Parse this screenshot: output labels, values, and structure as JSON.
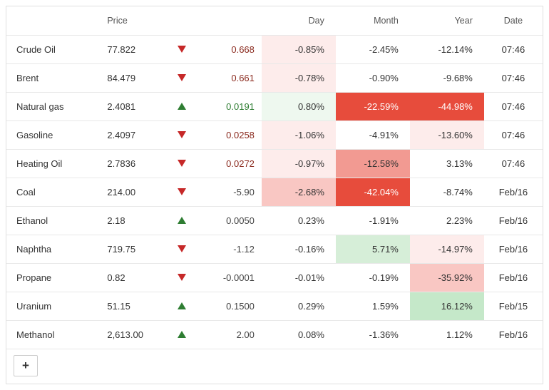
{
  "columns": {
    "name": "",
    "price": "Price",
    "arrow": "",
    "change": "",
    "day": "Day",
    "month": "Month",
    "year": "Year",
    "date": "Date"
  },
  "heat": {
    "neg1": "#fdeceb",
    "neg2": "#f9c7c3",
    "neg3": "#f29a92",
    "neg4": "#e74c3c",
    "neg4_text": "#ffffff",
    "pos1": "#eef8ef",
    "pos2": "#d6eed8",
    "pos3": "#c5e8c9"
  },
  "rows": [
    {
      "name": "Crude Oil",
      "price": "77.822",
      "dir": "down",
      "change": "0.668",
      "change_color": "down",
      "day": {
        "v": "-0.85%",
        "bg": "neg1"
      },
      "month": {
        "v": "-2.45%",
        "bg": null
      },
      "year": {
        "v": "-12.14%",
        "bg": null
      },
      "date": "07:46"
    },
    {
      "name": "Brent",
      "price": "84.479",
      "dir": "down",
      "change": "0.661",
      "change_color": "down",
      "day": {
        "v": "-0.78%",
        "bg": "neg1"
      },
      "month": {
        "v": "-0.90%",
        "bg": null
      },
      "year": {
        "v": "-9.68%",
        "bg": null
      },
      "date": "07:46"
    },
    {
      "name": "Natural gas",
      "price": "2.4081",
      "dir": "up",
      "change": "0.0191",
      "change_color": "up",
      "day": {
        "v": "0.80%",
        "bg": "pos1"
      },
      "month": {
        "v": "-22.59%",
        "bg": "neg4"
      },
      "year": {
        "v": "-44.98%",
        "bg": "neg4"
      },
      "date": "07:46"
    },
    {
      "name": "Gasoline",
      "price": "2.4097",
      "dir": "down",
      "change": "0.0258",
      "change_color": "down",
      "day": {
        "v": "-1.06%",
        "bg": "neg1"
      },
      "month": {
        "v": "-4.91%",
        "bg": null
      },
      "year": {
        "v": "-13.60%",
        "bg": "neg1"
      },
      "date": "07:46"
    },
    {
      "name": "Heating Oil",
      "price": "2.7836",
      "dir": "down",
      "change": "0.0272",
      "change_color": "down",
      "day": {
        "v": "-0.97%",
        "bg": "neg1"
      },
      "month": {
        "v": "-12.58%",
        "bg": "neg3"
      },
      "year": {
        "v": "3.13%",
        "bg": null
      },
      "date": "07:46"
    },
    {
      "name": "Coal",
      "price": "214.00",
      "dir": "down",
      "change": "-5.90",
      "change_color": "flat",
      "day": {
        "v": "-2.68%",
        "bg": "neg2"
      },
      "month": {
        "v": "-42.04%",
        "bg": "neg4"
      },
      "year": {
        "v": "-8.74%",
        "bg": null
      },
      "date": "Feb/16"
    },
    {
      "name": "Ethanol",
      "price": "2.18",
      "dir": "up",
      "change": "0.0050",
      "change_color": "flat",
      "day": {
        "v": "0.23%",
        "bg": null
      },
      "month": {
        "v": "-1.91%",
        "bg": null
      },
      "year": {
        "v": "2.23%",
        "bg": null
      },
      "date": "Feb/16"
    },
    {
      "name": "Naphtha",
      "price": "719.75",
      "dir": "down",
      "change": "-1.12",
      "change_color": "flat",
      "day": {
        "v": "-0.16%",
        "bg": null
      },
      "month": {
        "v": "5.71%",
        "bg": "pos2"
      },
      "year": {
        "v": "-14.97%",
        "bg": "neg1"
      },
      "date": "Feb/16"
    },
    {
      "name": "Propane",
      "price": "0.82",
      "dir": "down",
      "change": "-0.0001",
      "change_color": "flat",
      "day": {
        "v": "-0.01%",
        "bg": null
      },
      "month": {
        "v": "-0.19%",
        "bg": null
      },
      "year": {
        "v": "-35.92%",
        "bg": "neg2"
      },
      "date": "Feb/16"
    },
    {
      "name": "Uranium",
      "price": "51.15",
      "dir": "up",
      "change": "0.1500",
      "change_color": "flat",
      "day": {
        "v": "0.29%",
        "bg": null
      },
      "month": {
        "v": "1.59%",
        "bg": null
      },
      "year": {
        "v": "16.12%",
        "bg": "pos3"
      },
      "date": "Feb/15"
    },
    {
      "name": "Methanol",
      "price": "2,613.00",
      "dir": "up",
      "change": "2.00",
      "change_color": "flat",
      "day": {
        "v": "0.08%",
        "bg": null
      },
      "month": {
        "v": "-1.36%",
        "bg": null
      },
      "year": {
        "v": "1.12%",
        "bg": null
      },
      "date": "Feb/16"
    }
  ],
  "add_button_label": "+"
}
